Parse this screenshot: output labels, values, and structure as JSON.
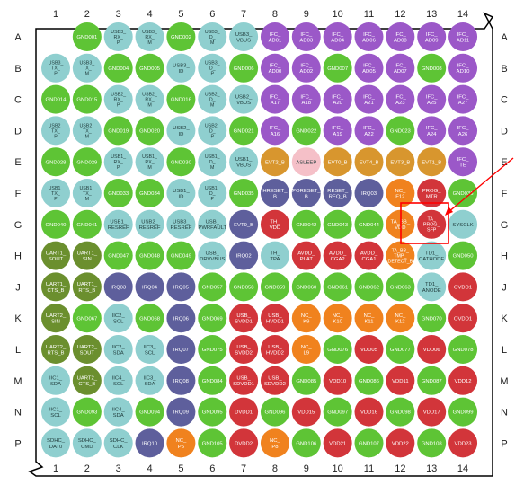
{
  "columns": [
    "1",
    "2",
    "3",
    "4",
    "5",
    "6",
    "7",
    "8",
    "9",
    "10",
    "11",
    "12",
    "13",
    "14"
  ],
  "row_labels": [
    "A",
    "B",
    "C",
    "D",
    "E",
    "F",
    "G",
    "H",
    "J",
    "K",
    "L",
    "M",
    "N",
    "P"
  ],
  "colors": {
    "green": "#5ec435",
    "lightblue": "#8fcfcf",
    "darkblue": "#5e5f9c",
    "purple": "#9b58c8",
    "orange": "#f0821e",
    "gold": "#d8962e",
    "red": "#d2353a",
    "olive": "#6b8f2e",
    "pink": "#f5c0c8",
    "outline": "#000000",
    "highlight": "#ff0000"
  },
  "rows": [
    [
      [
        "",
        ""
      ],
      [
        "GND001",
        "green"
      ],
      [
        "USB3_ RX_ P",
        "lightblue"
      ],
      [
        "USB3_ RX_ M",
        "lightblue"
      ],
      [
        "GND002",
        "green"
      ],
      [
        "USB3_ D_ M",
        "lightblue"
      ],
      [
        "USB3_ VBUS",
        "lightblue"
      ],
      [
        "IFC_ AD01",
        "purple"
      ],
      [
        "IFC_ AD03",
        "purple"
      ],
      [
        "IFC_ AD04",
        "purple"
      ],
      [
        "IFC_ AD06",
        "purple"
      ],
      [
        "IFC_ AD08",
        "purple"
      ],
      [
        "IFC_ AD09",
        "purple"
      ],
      [
        "IFC_ AD11",
        "purple"
      ]
    ],
    [
      [
        "USB3_ TX_ P",
        "lightblue"
      ],
      [
        "USB3_ TX_ M",
        "lightblue"
      ],
      [
        "GND004",
        "green"
      ],
      [
        "GND005",
        "green"
      ],
      [
        "USB3_ ID",
        "lightblue"
      ],
      [
        "USB3_ D_ P",
        "lightblue"
      ],
      [
        "GND006",
        "green"
      ],
      [
        "IFC_ AD00",
        "purple"
      ],
      [
        "IFC_ AD02",
        "purple"
      ],
      [
        "GND007",
        "green"
      ],
      [
        "IFC_ AD05",
        "purple"
      ],
      [
        "IFC_ AD07",
        "purple"
      ],
      [
        "GND008",
        "green"
      ],
      [
        "IFC_ AD10",
        "purple"
      ]
    ],
    [
      [
        "GND014",
        "green"
      ],
      [
        "GND015",
        "green"
      ],
      [
        "USB2_ RX_ P",
        "lightblue"
      ],
      [
        "USB2_ RX_ M",
        "lightblue"
      ],
      [
        "GND016",
        "green"
      ],
      [
        "USB2_ D_ M",
        "lightblue"
      ],
      [
        "USB2_ VBUS",
        "lightblue"
      ],
      [
        "IFC_ A17",
        "purple"
      ],
      [
        "IFC_ A18",
        "purple"
      ],
      [
        "IFC_ A20",
        "purple"
      ],
      [
        "IFC_ A21",
        "purple"
      ],
      [
        "IFC_ A23",
        "purple"
      ],
      [
        "IFC_ A25",
        "purple"
      ],
      [
        "IFC_ A27",
        "purple"
      ]
    ],
    [
      [
        "USB2_ TX_ P",
        "lightblue"
      ],
      [
        "USB2_ TX_ M",
        "lightblue"
      ],
      [
        "GND019",
        "green"
      ],
      [
        "GND020",
        "green"
      ],
      [
        "USB2_ ID",
        "lightblue"
      ],
      [
        "USB2_ D_ P",
        "lightblue"
      ],
      [
        "GND021",
        "green"
      ],
      [
        "IFC_ A16",
        "purple"
      ],
      [
        "GND022",
        "green"
      ],
      [
        "IFC_ A19",
        "purple"
      ],
      [
        "IFC_ A22",
        "purple"
      ],
      [
        "GND023",
        "green"
      ],
      [
        "IFC_ A24",
        "purple"
      ],
      [
        "IFC_ A26",
        "purple"
      ]
    ],
    [
      [
        "GND028",
        "green"
      ],
      [
        "GND029",
        "green"
      ],
      [
        "USB1_ RX_ P",
        "lightblue"
      ],
      [
        "USB1_ RX_ M",
        "lightblue"
      ],
      [
        "GND030",
        "green"
      ],
      [
        "USB1_ D_ M",
        "lightblue"
      ],
      [
        "USB1_ VBUS",
        "lightblue"
      ],
      [
        "EVT2_B",
        "gold"
      ],
      [
        "ASLEEP",
        "pink"
      ],
      [
        "EVT0_B",
        "gold"
      ],
      [
        "EVT4_B",
        "gold"
      ],
      [
        "EVT3_B",
        "gold"
      ],
      [
        "EVT1_B",
        "gold"
      ],
      [
        "IFC_ TE",
        "purple"
      ]
    ],
    [
      [
        "USB1_ TX_ P",
        "lightblue"
      ],
      [
        "USB1_ TX_ M",
        "lightblue"
      ],
      [
        "GND033",
        "green"
      ],
      [
        "GND034",
        "green"
      ],
      [
        "USB1_ ID",
        "lightblue"
      ],
      [
        "USB1_ D_ P",
        "lightblue"
      ],
      [
        "GND035",
        "green"
      ],
      [
        "HRESET_ B",
        "darkblue"
      ],
      [
        "PORESET_ B",
        "darkblue"
      ],
      [
        "RESET_ REQ_B",
        "darkblue"
      ],
      [
        "IRQ03",
        "darkblue"
      ],
      [
        "NC_ F12",
        "orange"
      ],
      [
        "PROG_ MTR",
        "red"
      ],
      [
        "GND036",
        "green"
      ]
    ],
    [
      [
        "GND040",
        "green"
      ],
      [
        "GND041",
        "green"
      ],
      [
        "USB1_ RESREF",
        "lightblue"
      ],
      [
        "USB2_ RESREF",
        "lightblue"
      ],
      [
        "USB3_ RESREF",
        "lightblue"
      ],
      [
        "USB_ PWRFAULT",
        "lightblue"
      ],
      [
        "EVT9_B",
        "darkblue"
      ],
      [
        "TH_ VDD",
        "red"
      ],
      [
        "GND042",
        "green"
      ],
      [
        "GND043",
        "green"
      ],
      [
        "GND044",
        "green"
      ],
      [
        "TA_BB_ VDD",
        "orange"
      ],
      [
        "TA_ PROG_ SFP",
        "red"
      ],
      [
        "SYSCLK",
        "lightblue"
      ]
    ],
    [
      [
        "UART1_ SOUT",
        "olive"
      ],
      [
        "UART1_ SIN",
        "olive"
      ],
      [
        "GND047",
        "green"
      ],
      [
        "GND048",
        "green"
      ],
      [
        "GND049",
        "green"
      ],
      [
        "USB_ DRVVBUS",
        "lightblue"
      ],
      [
        "IRQ02",
        "darkblue"
      ],
      [
        "TH_ TPA",
        "lightblue"
      ],
      [
        "AVDD_ PLAT",
        "red"
      ],
      [
        "AVDD_ CGA2",
        "red"
      ],
      [
        "AVDD_ CGA1",
        "red"
      ],
      [
        "TA_BB_ TMP_ DETECT_B",
        "orange"
      ],
      [
        "TD1_ CATHODE",
        "lightblue"
      ],
      [
        "GND050",
        "green"
      ]
    ],
    [
      [
        "UART1_ CTS_B",
        "olive"
      ],
      [
        "UART1_ RTS_B",
        "olive"
      ],
      [
        "IRQ03",
        "darkblue"
      ],
      [
        "IRQ04",
        "darkblue"
      ],
      [
        "IRQ05",
        "darkblue"
      ],
      [
        "GND057",
        "green"
      ],
      [
        "GND058",
        "green"
      ],
      [
        "GND059",
        "green"
      ],
      [
        "GND060",
        "green"
      ],
      [
        "GND061",
        "green"
      ],
      [
        "GND062",
        "green"
      ],
      [
        "GND063",
        "green"
      ],
      [
        "TD1_ ANODE",
        "lightblue"
      ],
      [
        "OVDD1",
        "red"
      ]
    ],
    [
      [
        "UART2_ SIN",
        "olive"
      ],
      [
        "GND067",
        "green"
      ],
      [
        "IIC2_ SCL",
        "lightblue"
      ],
      [
        "GND068",
        "green"
      ],
      [
        "IRQ06",
        "darkblue"
      ],
      [
        "GND069",
        "green"
      ],
      [
        "USB_ SVDD1",
        "red"
      ],
      [
        "USB_ HVDD1",
        "red"
      ],
      [
        "NC_ K9",
        "orange"
      ],
      [
        "NC_ K10",
        "orange"
      ],
      [
        "NC_ K11",
        "orange"
      ],
      [
        "NC_ K12",
        "orange"
      ],
      [
        "GND070",
        "green"
      ],
      [
        "OVDD1",
        "red"
      ]
    ],
    [
      [
        "UART2_ RTS_B",
        "olive"
      ],
      [
        "UART2_ SOUT",
        "olive"
      ],
      [
        "IIC2_ SDA",
        "lightblue"
      ],
      [
        "IIC3_ SCL",
        "lightblue"
      ],
      [
        "IRQ07",
        "darkblue"
      ],
      [
        "GND075",
        "green"
      ],
      [
        "USB_ SVDD2",
        "red"
      ],
      [
        "USB_ HVDD2",
        "red"
      ],
      [
        "NC_ L9",
        "orange"
      ],
      [
        "GND076",
        "green"
      ],
      [
        "VDD05",
        "red"
      ],
      [
        "GND077",
        "green"
      ],
      [
        "VDD06",
        "red"
      ],
      [
        "GND078",
        "green"
      ]
    ],
    [
      [
        "IIC1_ SDA",
        "lightblue"
      ],
      [
        "UART2_ CTS_B",
        "olive"
      ],
      [
        "IIC4_ SCL",
        "lightblue"
      ],
      [
        "IIC3_ SDA",
        "lightblue"
      ],
      [
        "IRQ08",
        "darkblue"
      ],
      [
        "GND084",
        "green"
      ],
      [
        "USB_ SDVDD1",
        "red"
      ],
      [
        "USB_ SDVDD2",
        "red"
      ],
      [
        "GND085",
        "green"
      ],
      [
        "VDD10",
        "red"
      ],
      [
        "GND086",
        "green"
      ],
      [
        "VDD11",
        "red"
      ],
      [
        "GND087",
        "green"
      ],
      [
        "VDD12",
        "red"
      ]
    ],
    [
      [
        "IIC1_ SCL",
        "lightblue"
      ],
      [
        "GND093",
        "green"
      ],
      [
        "IIC4_ SDA",
        "lightblue"
      ],
      [
        "GND094",
        "green"
      ],
      [
        "IRQ09",
        "darkblue"
      ],
      [
        "GND095",
        "green"
      ],
      [
        "DVDD1",
        "red"
      ],
      [
        "GND096",
        "green"
      ],
      [
        "VDD15",
        "red"
      ],
      [
        "GND097",
        "green"
      ],
      [
        "VDD16",
        "red"
      ],
      [
        "GND098",
        "green"
      ],
      [
        "VDD17",
        "red"
      ],
      [
        "GND099",
        "green"
      ]
    ],
    [
      [
        "SDHC_ DAT0",
        "lightblue"
      ],
      [
        "SDHC_ CMD",
        "lightblue"
      ],
      [
        "SDHC_ CLK",
        "lightblue"
      ],
      [
        "IRQ10",
        "darkblue"
      ],
      [
        "NC_ P5",
        "orange"
      ],
      [
        "GND105",
        "green"
      ],
      [
        "DVDD2",
        "red"
      ],
      [
        "NC_ P8",
        "orange"
      ],
      [
        "GND106",
        "green"
      ],
      [
        "VDD21",
        "red"
      ],
      [
        "GND107",
        "green"
      ],
      [
        "VDD22",
        "red"
      ],
      [
        "GND108",
        "green"
      ],
      [
        "VDD23",
        "red"
      ]
    ]
  ]
}
